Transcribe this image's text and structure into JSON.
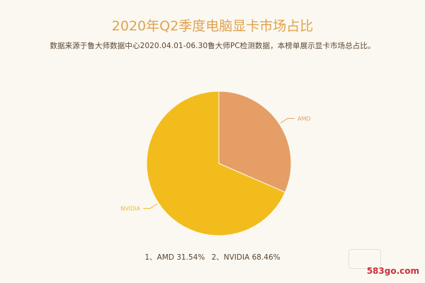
{
  "chart_data": {
    "type": "pie",
    "title": "2020年Q2季度电脑显卡市场占比",
    "subtitle": "数据来源于鲁大师数据中心2020.04.01-06.30鲁大师PC检测数据，本榜单展示显卡市场总占比。",
    "slices": [
      {
        "label": "AMD",
        "value": 31.54,
        "color": "#e49e66"
      },
      {
        "label": "NVIDIA",
        "value": 68.46,
        "color": "#f2bc1c"
      }
    ],
    "summary": [
      {
        "text": "1、AMD 31.54%"
      },
      {
        "text": "2、NVIDIA 68.46%"
      }
    ]
  },
  "watermark": {
    "text": "583go.com"
  }
}
